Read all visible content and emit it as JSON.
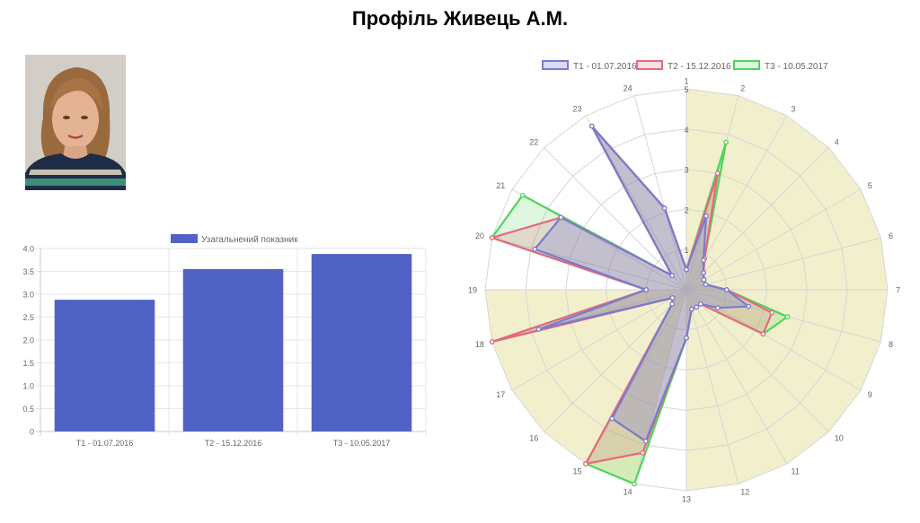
{
  "page": {
    "title": "Профіль Живець А.М."
  },
  "avatar": {
    "name": "profile-photo"
  },
  "chart_data": [
    {
      "type": "bar",
      "legend": {
        "label": "Узагальнений показник",
        "color": "#5063c4",
        "placement": "top"
      },
      "categories": [
        "T1 - 01.07.2016",
        "T2 - 15.12.2016",
        "T3 - 10.05.2017"
      ],
      "series": [
        {
          "name": "Узагальнений показник",
          "values": [
            2.88,
            3.55,
            3.88
          ],
          "color": "#5063c4"
        }
      ],
      "ylim": [
        0,
        4
      ],
      "yticks": [
        "0",
        "0.5",
        "1.0",
        "1.5",
        "2.0",
        "2.5",
        "3.0",
        "3.5",
        "4.0"
      ],
      "grid": true
    },
    {
      "type": "radar",
      "labels": [
        "1",
        "2",
        "3",
        "4",
        "5",
        "6",
        "7",
        "8",
        "9",
        "10",
        "11",
        "12",
        "13",
        "14",
        "15",
        "16",
        "17",
        "18",
        "19",
        "20",
        "21",
        "22",
        "23",
        "24"
      ],
      "rlim": [
        0,
        5
      ],
      "rticks": [
        "1",
        "2",
        "3",
        "4",
        "5"
      ],
      "background_sectors": {
        "color": "#f2efcc",
        "value": 5,
        "ranges": [
          [
            1,
            13
          ],
          [
            14,
            19
          ]
        ]
      },
      "legend": {
        "placement": "top"
      },
      "series": [
        {
          "name": "T1 - 01.07.2016",
          "color": "#7b7bcf",
          "fill": "rgba(123,123,207,0.28)",
          "values": [
            0.5,
            1.9,
            0.85,
            0.6,
            0.5,
            0.5,
            1.0,
            1.6,
            0.9,
            0.5,
            0.5,
            0.5,
            1.2,
            3.9,
            3.7,
            0.5,
            0.4,
            3.8,
            1.0,
            3.9,
            3.6,
            0.5,
            4.7,
            2.1
          ]
        },
        {
          "name": "T2 - 15.12.2016",
          "color": "#e8687f",
          "fill": "rgba(232,104,127,0.2)",
          "values": [
            0.5,
            3.0,
            0.9,
            0.6,
            0.5,
            0.5,
            1.0,
            2.2,
            2.2,
            0.5,
            0.5,
            0.5,
            1.2,
            4.2,
            5.0,
            0.5,
            0.4,
            5.0,
            1.0,
            5.0,
            3.6,
            0.5,
            4.7,
            2.1
          ]
        },
        {
          "name": "T3 - 10.05.2017",
          "color": "#4fd45a",
          "fill": "rgba(79,212,90,0.18)",
          "values": [
            0.5,
            3.8,
            0.9,
            0.6,
            0.5,
            0.5,
            1.0,
            2.6,
            2.2,
            0.5,
            0.5,
            0.5,
            1.2,
            5.0,
            5.0,
            0.5,
            0.4,
            5.0,
            1.0,
            5.0,
            4.7,
            0.5,
            4.7,
            2.1
          ]
        }
      ]
    }
  ]
}
